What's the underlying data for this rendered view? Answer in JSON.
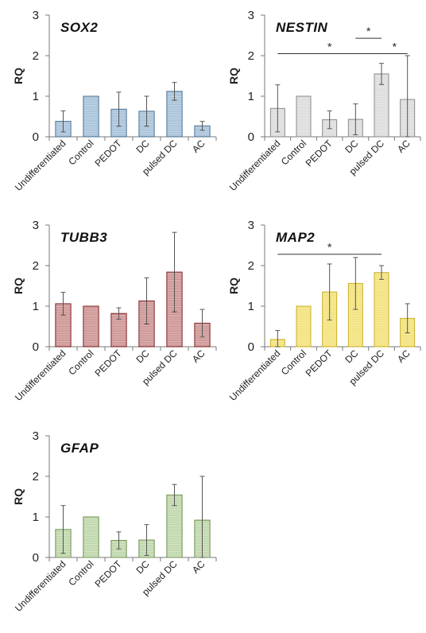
{
  "chart_data": [
    {
      "type": "bar",
      "title": "SOX2",
      "ylabel": "RQ",
      "ylim": [
        0,
        3
      ],
      "yticks": [
        "0",
        "1",
        "2",
        "3"
      ],
      "categories": [
        "Undifferentiated",
        "Control",
        "PEDOT",
        "DC",
        "pulsed DC",
        "AC"
      ],
      "values": [
        0.38,
        1.0,
        0.68,
        0.63,
        1.12,
        0.27
      ],
      "errors": [
        0.26,
        0.0,
        0.42,
        0.37,
        0.22,
        0.11
      ],
      "color": "#9fbcd6",
      "stroke": "#4e7393",
      "significance": []
    },
    {
      "type": "bar",
      "title": "NESTIN",
      "ylabel": "RQ",
      "ylim": [
        0,
        3
      ],
      "yticks": [
        "0",
        "1",
        "2",
        "3"
      ],
      "categories": [
        "Undifferentiated",
        "Control",
        "PEDOT",
        "DC",
        "pulsed DC",
        "AC"
      ],
      "values": [
        0.7,
        1.0,
        0.42,
        0.43,
        1.55,
        0.92
      ],
      "errors": [
        0.58,
        0.0,
        0.22,
        0.38,
        0.26,
        1.08
      ],
      "color": "#d9d9d9",
      "stroke": "#8a8a8a",
      "significance": [
        {
          "from": 0,
          "to": 4,
          "level": 2.05,
          "label": "*"
        },
        {
          "from": 3,
          "to": 4,
          "level": 2.43,
          "label": "*"
        },
        {
          "from": 4,
          "to": 5,
          "level": 2.05,
          "label": "*"
        }
      ]
    },
    {
      "type": "bar",
      "title": "TUBB3",
      "ylabel": "RQ",
      "ylim": [
        0,
        3
      ],
      "yticks": [
        "0",
        "1",
        "2",
        "3"
      ],
      "categories": [
        "Undifferentiated",
        "Control",
        "PEDOT",
        "DC",
        "pulsed DC",
        "AC"
      ],
      "values": [
        1.06,
        1.0,
        0.82,
        1.13,
        1.84,
        0.58
      ],
      "errors": [
        0.28,
        0.0,
        0.14,
        0.57,
        0.98,
        0.34
      ],
      "color": "#c98a8a",
      "stroke": "#7f2020",
      "significance": []
    },
    {
      "type": "bar",
      "title": "MAP2",
      "ylabel": "RQ",
      "ylim": [
        0,
        3
      ],
      "yticks": [
        "0",
        "1",
        "2",
        "3"
      ],
      "categories": [
        "Undifferentiated",
        "Control",
        "PEDOT",
        "DC",
        "pulsed DC",
        "AC"
      ],
      "values": [
        0.18,
        1.0,
        1.35,
        1.56,
        1.83,
        0.7
      ],
      "errors": [
        0.22,
        0.0,
        0.69,
        0.64,
        0.17,
        0.36
      ],
      "color": "#f2df6e",
      "stroke": "#c9b02a",
      "significance": [
        {
          "from": 0,
          "to": 4,
          "level": 2.28,
          "label": "*"
        }
      ]
    },
    {
      "type": "bar",
      "title": "GFAP",
      "ylabel": "RQ",
      "ylim": [
        0,
        3
      ],
      "yticks": [
        "0",
        "1",
        "2",
        "3"
      ],
      "categories": [
        "Undifferentiated",
        "Control",
        "PEDOT",
        "DC",
        "pulsed DC",
        "AC"
      ],
      "values": [
        0.69,
        1.0,
        0.42,
        0.43,
        1.54,
        0.92
      ],
      "errors": [
        0.59,
        0.0,
        0.21,
        0.38,
        0.26,
        1.08
      ],
      "color": "#b9d3a3",
      "stroke": "#6f9150",
      "significance": []
    }
  ]
}
